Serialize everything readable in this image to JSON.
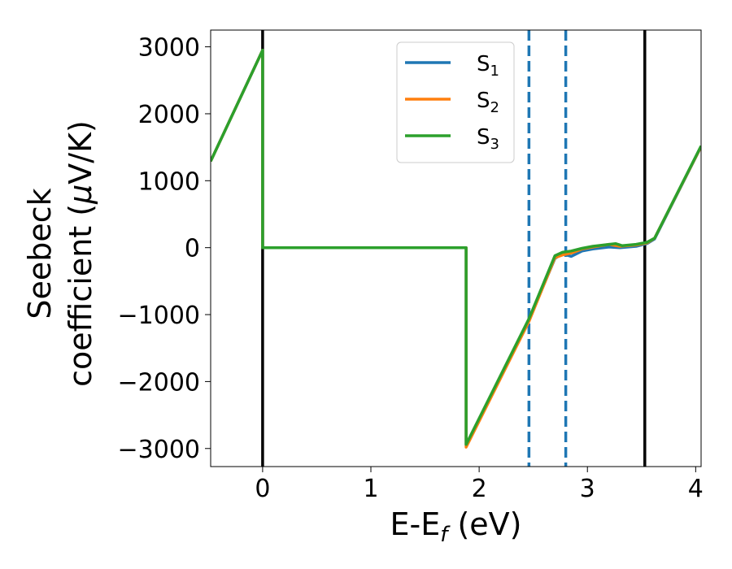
{
  "chart_data": {
    "type": "line",
    "title": "",
    "xlabel": "E-E",
    "xlabel_sub": "f",
    "xlabel_unit": " (eV)",
    "ylabel_line1": "Seebeck",
    "ylabel_line2": "coefficient  (",
    "ylabel_mu": "μ",
    "ylabel_unit": "V/K)",
    "xlim": [
      -0.48,
      4.05
    ],
    "ylim": [
      -3270,
      3250
    ],
    "xticks": [
      0,
      1,
      2,
      3,
      4
    ],
    "xtick_labels": [
      "0",
      "1",
      "2",
      "3",
      "4"
    ],
    "yticks": [
      3000,
      2000,
      1000,
      0,
      -1000,
      -2000,
      -3000
    ],
    "ytick_labels": [
      "3000",
      "2000",
      "1000",
      "0",
      "−1000",
      "−2000",
      "−3000"
    ],
    "grid": false,
    "legend_position": "top-center",
    "vertical_lines": [
      {
        "x": 0.0,
        "style": "solid",
        "color": "#000000"
      },
      {
        "x": 3.53,
        "style": "solid",
        "color": "#000000"
      },
      {
        "x": 2.46,
        "style": "dashed",
        "color": "#1f77b4"
      },
      {
        "x": 2.8,
        "style": "dashed",
        "color": "#1f77b4"
      }
    ],
    "series": [
      {
        "name": "S",
        "sub": "1",
        "color": "#1f77b4",
        "points": [
          [
            -0.48,
            1290
          ],
          [
            0.0,
            2950
          ],
          [
            0.0,
            0
          ],
          [
            1.88,
            0
          ],
          [
            1.88,
            -2950
          ],
          [
            2.46,
            -1080
          ],
          [
            2.7,
            -160
          ],
          [
            2.77,
            -90
          ],
          [
            2.85,
            -130
          ],
          [
            2.95,
            -50
          ],
          [
            3.05,
            -20
          ],
          [
            3.2,
            10
          ],
          [
            3.3,
            0
          ],
          [
            3.45,
            20
          ],
          [
            3.55,
            60
          ],
          [
            3.62,
            130
          ],
          [
            4.05,
            1510
          ]
        ]
      },
      {
        "name": "S",
        "sub": "2",
        "color": "#ff7f0e",
        "points": [
          [
            -0.48,
            1290
          ],
          [
            0.0,
            2950
          ],
          [
            0.0,
            0
          ],
          [
            1.88,
            0
          ],
          [
            1.88,
            -2980
          ],
          [
            2.46,
            -1100
          ],
          [
            2.7,
            -150
          ],
          [
            2.77,
            -110
          ],
          [
            2.85,
            -80
          ],
          [
            2.95,
            -20
          ],
          [
            3.05,
            10
          ],
          [
            3.2,
            50
          ],
          [
            3.3,
            20
          ],
          [
            3.45,
            40
          ],
          [
            3.55,
            70
          ],
          [
            3.62,
            140
          ],
          [
            4.05,
            1510
          ]
        ]
      },
      {
        "name": "S",
        "sub": "3",
        "color": "#2ca02c",
        "points": [
          [
            -0.48,
            1290
          ],
          [
            0.0,
            2950
          ],
          [
            0.0,
            0
          ],
          [
            1.88,
            0
          ],
          [
            1.88,
            -2940
          ],
          [
            2.46,
            -1060
          ],
          [
            2.7,
            -120
          ],
          [
            2.77,
            -70
          ],
          [
            2.85,
            -50
          ],
          [
            2.95,
            -10
          ],
          [
            3.05,
            20
          ],
          [
            3.2,
            50
          ],
          [
            3.26,
            60
          ],
          [
            3.32,
            30
          ],
          [
            3.45,
            50
          ],
          [
            3.55,
            80
          ],
          [
            3.62,
            140
          ],
          [
            4.05,
            1520
          ]
        ]
      }
    ]
  }
}
